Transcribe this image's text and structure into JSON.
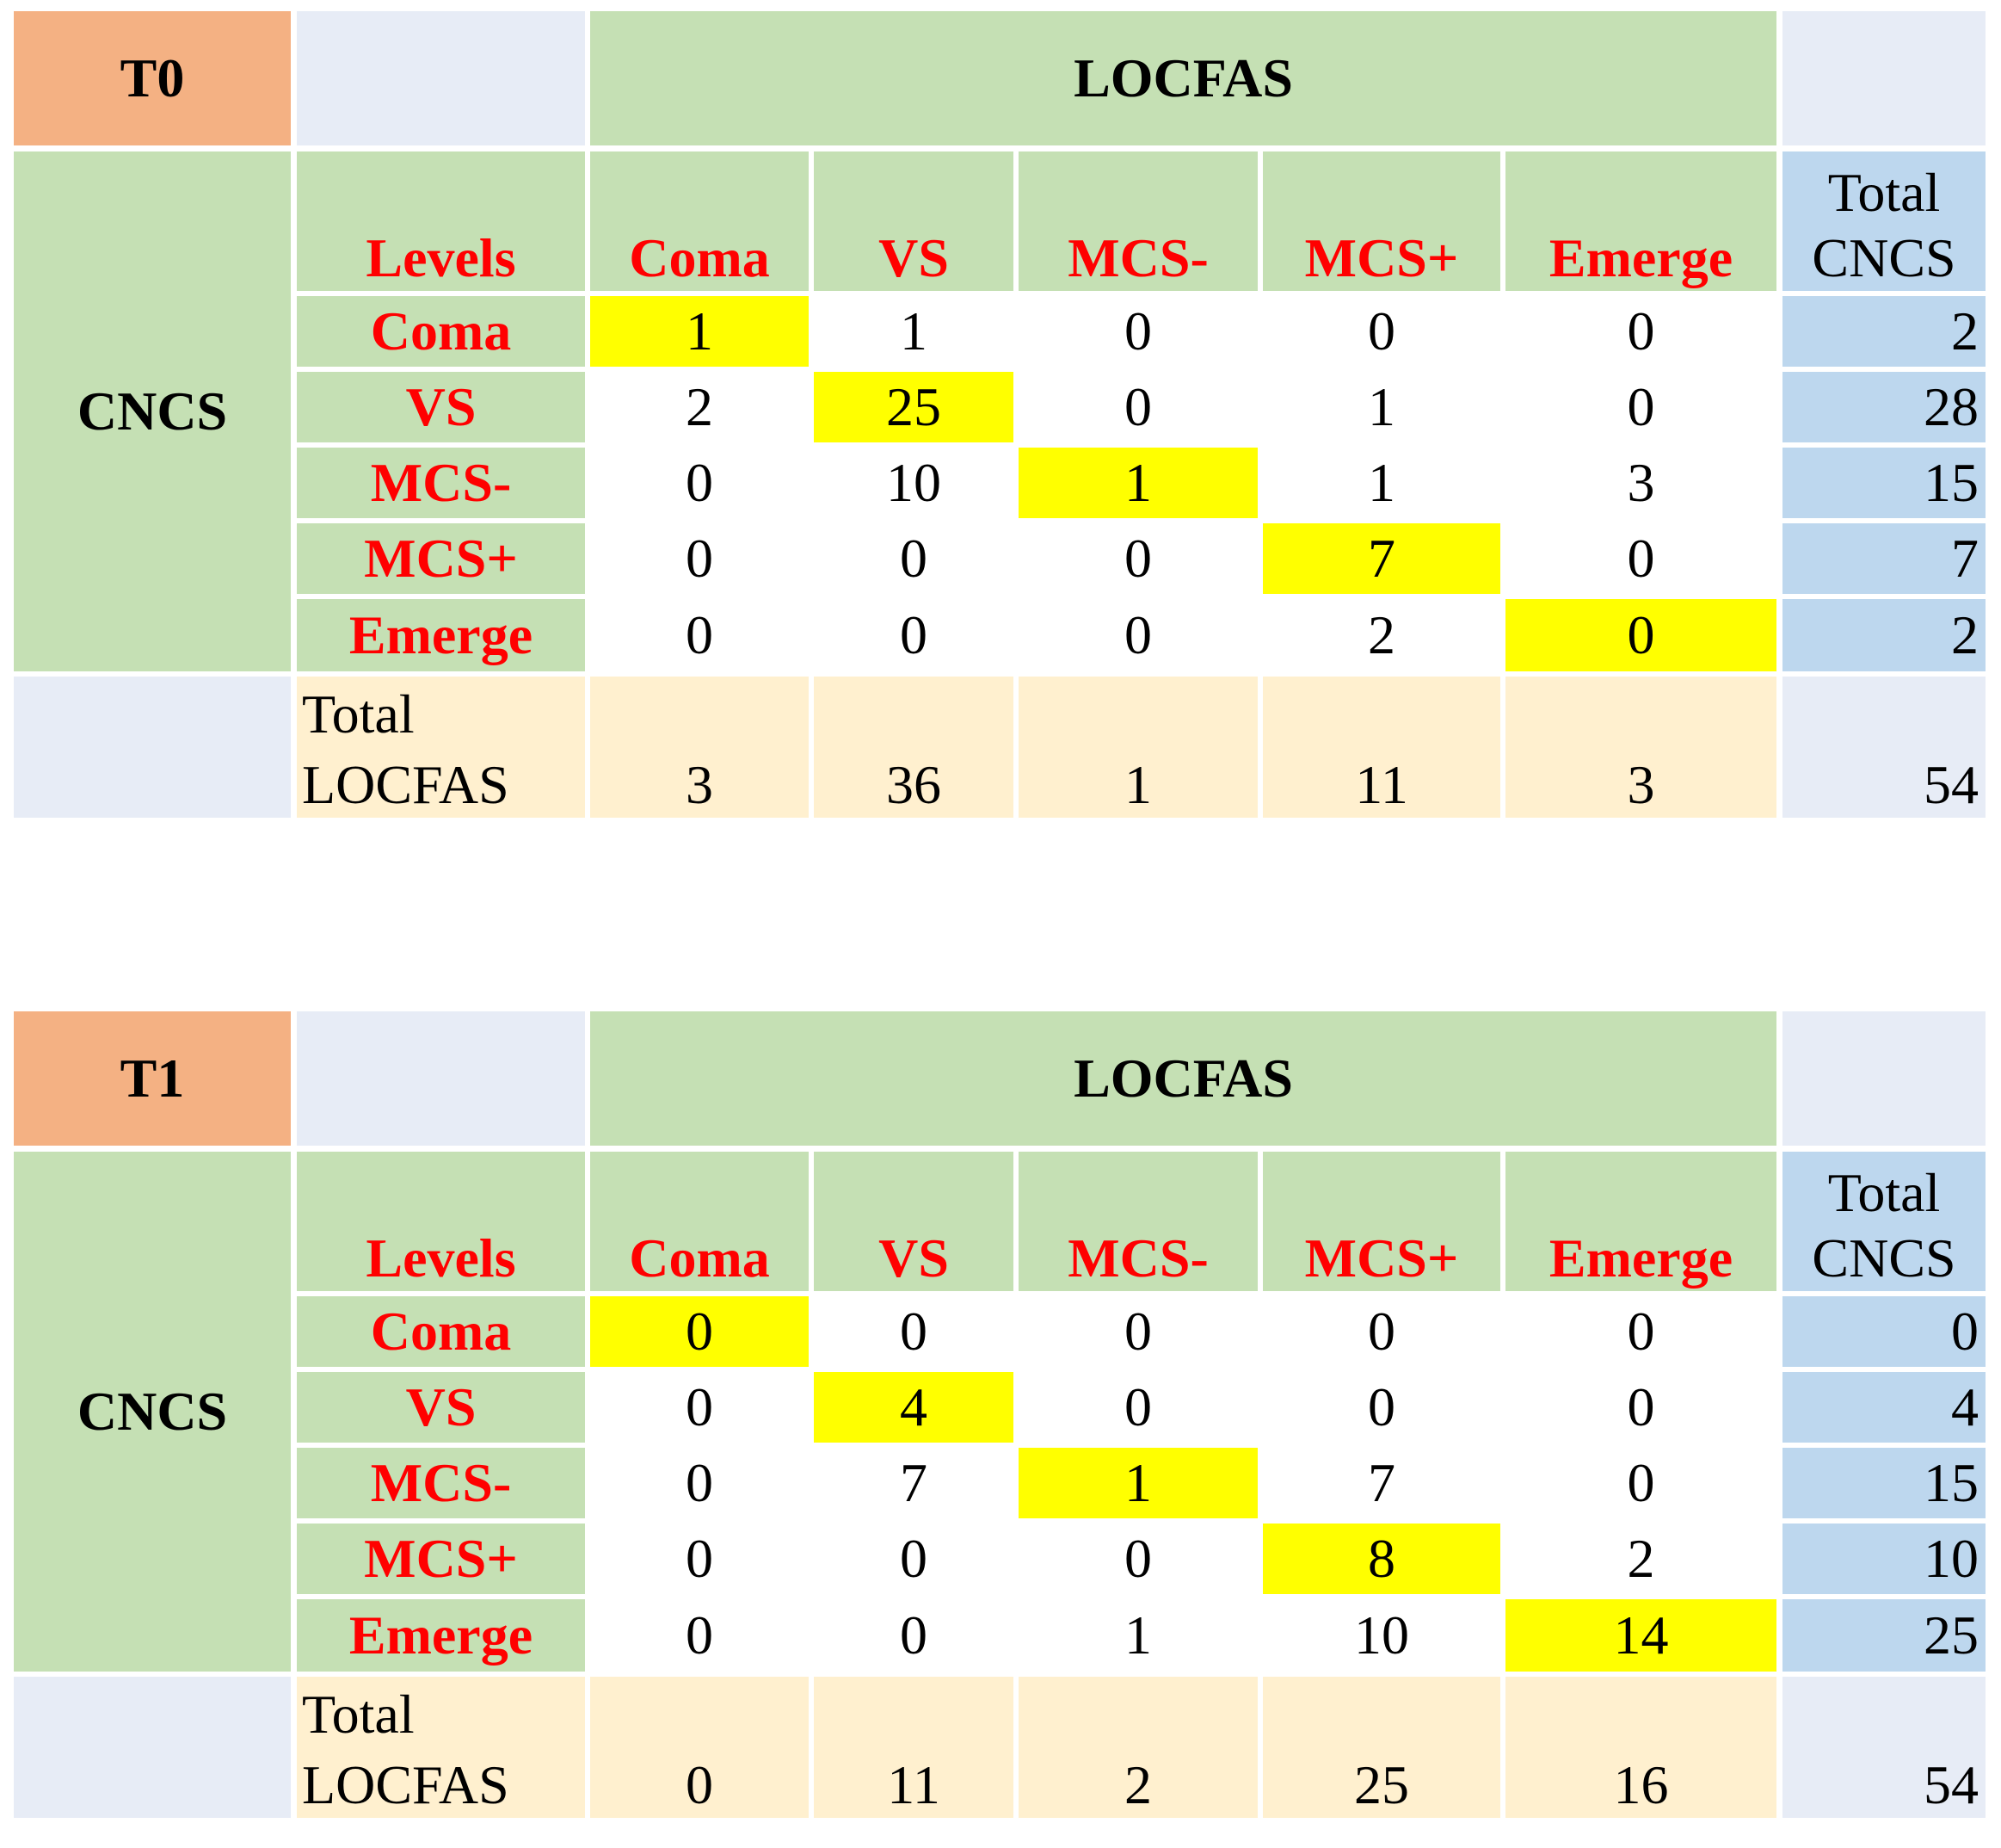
{
  "tables": [
    {
      "label": "T0",
      "header": "LOCFAS",
      "side_header": "CNCS",
      "levels_label": "Levels",
      "columns": [
        "Coma",
        "VS",
        "MCS-",
        "MCS+",
        "Emerge"
      ],
      "total_cncs": [
        "Total",
        "CNCS"
      ],
      "rows": [
        {
          "label": "Coma",
          "values": [
            "1",
            "1",
            "0",
            "0",
            "0"
          ],
          "total": "2"
        },
        {
          "label": "VS",
          "values": [
            "2",
            "25",
            "0",
            "1",
            "0"
          ],
          "total": "28"
        },
        {
          "label": "MCS-",
          "values": [
            "0",
            "10",
            "1",
            "1",
            "3"
          ],
          "total": "15"
        },
        {
          "label": "MCS+",
          "values": [
            "0",
            "0",
            "0",
            "7",
            "0"
          ],
          "total": "7"
        },
        {
          "label": "Emerge",
          "values": [
            "0",
            "0",
            "0",
            "2",
            "0"
          ],
          "total": "2"
        }
      ],
      "total_locfas": [
        "Total",
        "LOCFAS"
      ],
      "totals": [
        "3",
        "36",
        "1",
        "11",
        "3"
      ],
      "grand_total": "54"
    },
    {
      "label": "T1",
      "header": "LOCFAS",
      "side_header": "CNCS",
      "levels_label": "Levels",
      "columns": [
        "Coma",
        "VS",
        "MCS-",
        "MCS+",
        "Emerge"
      ],
      "total_cncs": [
        "Total",
        "CNCS"
      ],
      "rows": [
        {
          "label": "Coma",
          "values": [
            "0",
            "0",
            "0",
            "0",
            "0"
          ],
          "total": "0"
        },
        {
          "label": "VS",
          "values": [
            "0",
            "4",
            "0",
            "0",
            "0"
          ],
          "total": "4"
        },
        {
          "label": "MCS-",
          "values": [
            "0",
            "7",
            "1",
            "7",
            "0"
          ],
          "total": "15"
        },
        {
          "label": "MCS+",
          "values": [
            "0",
            "0",
            "0",
            "8",
            "2"
          ],
          "total": "10"
        },
        {
          "label": "Emerge",
          "values": [
            "0",
            "0",
            "1",
            "10",
            "14"
          ],
          "total": "25"
        }
      ],
      "total_locfas": [
        "Total",
        "LOCFAS"
      ],
      "totals": [
        "0",
        "11",
        "2",
        "25",
        "16"
      ],
      "grand_total": "54"
    }
  ],
  "colors": {
    "label_cell": "#f4b183",
    "header_green": "#c5e0b4",
    "total_blue": "#bdd7ee",
    "total_row": "#fff0cf",
    "diagonal": "#ffff00",
    "blank": "#e7ecf6",
    "level_text": "#ff0000"
  }
}
